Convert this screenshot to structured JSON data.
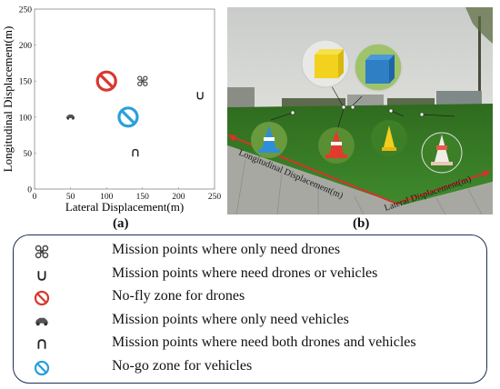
{
  "panel_a": {
    "label": "(a)",
    "chart_data": {
      "type": "scatter",
      "xlabel": "Lateral Displacement(m)",
      "ylabel": "Longitudinal Displacement(m)",
      "xlim": [
        0,
        250
      ],
      "ylim": [
        0,
        250
      ],
      "xticks": [
        "0",
        "50",
        "100",
        "150",
        "200",
        "250"
      ],
      "yticks": [
        "0",
        "50",
        "100",
        "150",
        "200",
        "250"
      ],
      "grid": false,
      "points": [
        {
          "kind": "drone-only",
          "x": 150,
          "y": 150,
          "icon": "propeller-icon"
        },
        {
          "kind": "drone-or-vehicle",
          "x": 230,
          "y": 130,
          "icon": "cup-icon"
        },
        {
          "kind": "no-fly-zone",
          "x": 100,
          "y": 150,
          "icon": "no-fly-icon",
          "color": "#d9382f"
        },
        {
          "kind": "vehicle-only",
          "x": 50,
          "y": 100,
          "icon": "car-icon"
        },
        {
          "kind": "drone-and-vehicle",
          "x": 140,
          "y": 50,
          "icon": "arch-icon"
        },
        {
          "kind": "no-go-zone",
          "x": 130,
          "y": 100,
          "icon": "no-go-icon",
          "color": "#2a9fdc"
        }
      ]
    }
  },
  "panel_b": {
    "label": "(b)",
    "axis_long": "Longitudinal Displacement(m)",
    "axis_lat": "Lateral Displacement(m)"
  },
  "legend": {
    "items": [
      {
        "icon": "propeller-icon",
        "text": "Mission points where only need drones"
      },
      {
        "icon": "cup-icon",
        "text": "Mission points where need drones or vehicles"
      },
      {
        "icon": "no-fly-icon",
        "text": "No-fly zone for drones"
      },
      {
        "icon": "car-icon",
        "text": "Mission points where only need vehicles"
      },
      {
        "icon": "arch-icon",
        "text": "Mission points where need both drones and vehicles"
      },
      {
        "icon": "no-go-icon",
        "text": "No-go zone for vehicles"
      }
    ]
  },
  "colors": {
    "no_fly": "#d9382f",
    "no_go": "#2a9fdc",
    "legend_border": "#1f2f55",
    "arrow": "#d8322a"
  }
}
